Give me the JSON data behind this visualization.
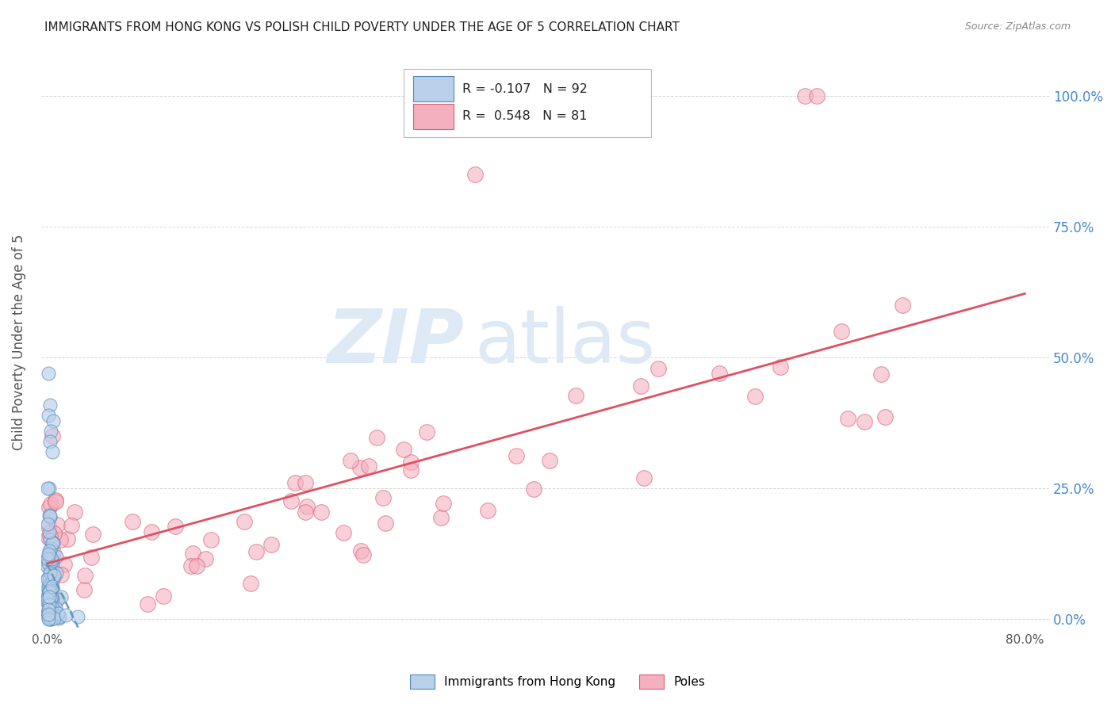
{
  "title": "IMMIGRANTS FROM HONG KONG VS POLISH CHILD POVERTY UNDER THE AGE OF 5 CORRELATION CHART",
  "source": "Source: ZipAtlas.com",
  "ylabel": "Child Poverty Under the Age of 5",
  "xlim": [
    -0.005,
    0.82
  ],
  "ylim": [
    -0.02,
    1.08
  ],
  "yticks": [
    0.0,
    0.25,
    0.5,
    0.75,
    1.0
  ],
  "ytick_labels_right": [
    "0.0%",
    "25.0%",
    "50.0%",
    "75.0%",
    "100.0%"
  ],
  "xtick_positions": [
    0.0,
    0.8
  ],
  "xtick_labels": [
    "0.0%",
    "80.0%"
  ],
  "hk_R": -0.107,
  "hk_N": 92,
  "poles_R": 0.548,
  "poles_N": 81,
  "hk_color": "#b8d0ea",
  "poles_color": "#f5b0c0",
  "hk_edge_color": "#5588bb",
  "poles_edge_color": "#d06070",
  "trend_hk_color": "#6699bb",
  "trend_poles_color": "#e05060",
  "watermark_color": "#ddeaf5",
  "background_color": "#ffffff",
  "grid_color": "#cccccc",
  "title_color": "#222222",
  "axis_label_color": "#555555",
  "tick_color_right": "#4488cc",
  "figsize": [
    14.06,
    8.92
  ],
  "dpi": 100
}
